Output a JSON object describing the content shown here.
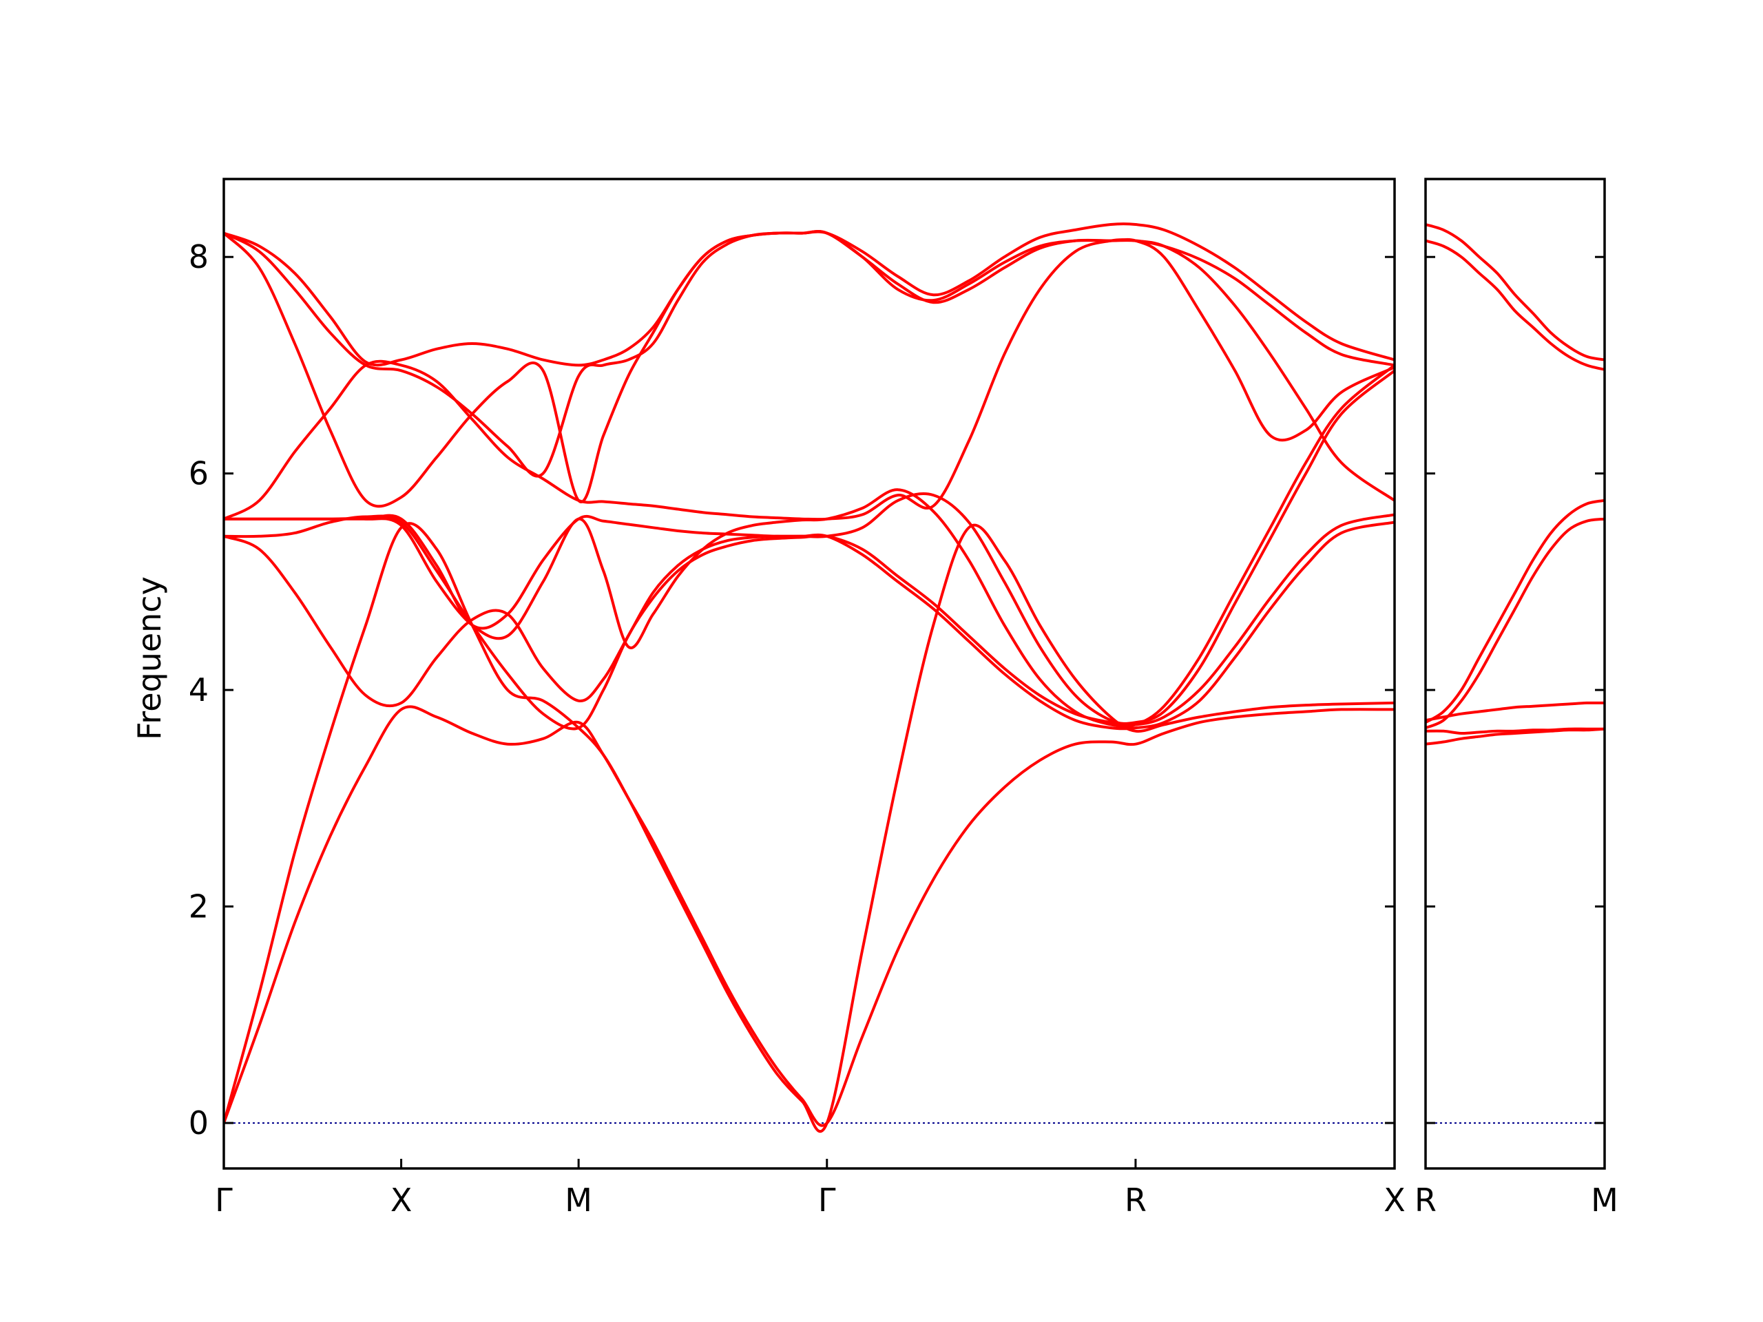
{
  "chart_data": {
    "type": "line",
    "ylabel": "Frequency",
    "xlabel": "",
    "ylim": [
      -0.42,
      8.72
    ],
    "yticks": [
      0,
      2,
      4,
      6,
      8
    ],
    "ytick_labels": [
      "0",
      "2",
      "4",
      "6",
      "8"
    ],
    "grid": false,
    "legend": "none",
    "line_color": "#ff0000",
    "zero_line_color": "#00008b",
    "panels": [
      {
        "name": "main",
        "xlim": [
          0,
          3.3
        ],
        "xticks": [
          0,
          0.5,
          1.0,
          1.7,
          2.57,
          3.3
        ],
        "xtick_labels": [
          "Γ",
          "X",
          "M",
          "Γ",
          "R",
          "X"
        ],
        "series": [
          {
            "x": [
              0,
              0.1,
              0.2,
              0.3,
              0.4,
              0.5,
              0.6,
              0.7,
              0.8,
              0.9,
              1.0,
              1.07,
              1.14,
              1.21,
              1.28,
              1.35,
              1.42,
              1.49,
              1.56,
              1.63,
              1.7,
              1.8,
              1.9,
              2.0,
              2.1,
              2.2,
              2.3,
              2.4,
              2.5,
              2.57,
              2.65,
              2.75,
              2.85,
              2.95,
              3.05,
              3.15,
              3.3
            ],
            "y": [
              0,
              0.9,
              1.85,
              2.65,
              3.3,
              3.82,
              3.75,
              3.6,
              3.5,
              3.55,
              3.7,
              3.4,
              3.0,
              2.6,
              2.15,
              1.7,
              1.25,
              0.85,
              0.5,
              0.22,
              0,
              0.8,
              1.6,
              2.25,
              2.75,
              3.1,
              3.35,
              3.5,
              3.52,
              3.5,
              3.6,
              3.7,
              3.75,
              3.78,
              3.8,
              3.82,
              3.82
            ]
          },
          {
            "x": [
              0,
              0.1,
              0.2,
              0.3,
              0.4,
              0.5,
              0.6,
              0.7,
              0.8,
              0.9,
              1.0,
              1.07,
              1.14,
              1.21,
              1.28,
              1.35,
              1.42,
              1.49,
              1.56,
              1.63,
              1.7,
              1.8,
              1.9,
              2.0,
              2.1,
              2.2,
              2.3,
              2.4,
              2.5,
              2.57,
              2.65,
              2.75,
              2.85,
              2.95,
              3.05,
              3.15,
              3.3
            ],
            "y": [
              0,
              1.2,
              2.5,
              3.6,
              4.6,
              5.5,
              5.3,
              4.6,
              4.0,
              3.9,
              3.65,
              3.4,
              3.0,
              2.55,
              2.1,
              1.65,
              1.2,
              0.8,
              0.45,
              0.2,
              0,
              1.6,
              3.2,
              4.6,
              5.5,
              5.2,
              4.6,
              4.1,
              3.75,
              3.62,
              3.68,
              3.75,
              3.8,
              3.84,
              3.86,
              3.87,
              3.88
            ]
          },
          {
            "x": [
              0,
              0.1,
              0.2,
              0.3,
              0.4,
              0.5,
              0.6,
              0.7,
              0.8,
              0.9,
              1.0,
              1.07,
              1.14,
              1.21,
              1.28,
              1.35,
              1.42,
              1.49,
              1.56,
              1.63,
              1.7,
              1.8,
              1.9,
              2.0,
              2.1,
              2.2,
              2.3,
              2.4,
              2.5,
              2.57,
              2.65,
              2.75,
              2.85,
              2.95,
              3.05,
              3.15,
              3.3
            ],
            "y": [
              5.42,
              5.3,
              4.9,
              4.4,
              3.95,
              3.88,
              4.3,
              4.65,
              4.7,
              4.2,
              3.9,
              4.1,
              4.5,
              4.9,
              5.15,
              5.3,
              5.38,
              5.41,
              5.42,
              5.42,
              5.42,
              5.25,
              5.0,
              4.75,
              4.45,
              4.15,
              3.9,
              3.72,
              3.65,
              3.65,
              3.7,
              3.9,
              4.3,
              4.75,
              5.15,
              5.45,
              5.55
            ]
          },
          {
            "x": [
              0,
              0.1,
              0.2,
              0.3,
              0.4,
              0.5,
              0.6,
              0.7,
              0.8,
              0.9,
              1.0,
              1.07,
              1.14,
              1.21,
              1.28,
              1.35,
              1.42,
              1.49,
              1.56,
              1.63,
              1.7,
              1.8,
              1.9,
              2.0,
              2.1,
              2.2,
              2.3,
              2.4,
              2.5,
              2.57,
              2.65,
              2.75,
              2.85,
              2.95,
              3.05,
              3.15,
              3.3
            ],
            "y": [
              5.42,
              5.42,
              5.45,
              5.55,
              5.6,
              5.55,
              5.1,
              4.6,
              4.15,
              3.78,
              3.65,
              4.0,
              4.5,
              4.85,
              5.1,
              5.25,
              5.33,
              5.38,
              5.4,
              5.41,
              5.42,
              5.3,
              5.05,
              4.8,
              4.5,
              4.2,
              3.95,
              3.78,
              3.7,
              3.68,
              3.75,
              4.0,
              4.4,
              4.85,
              5.25,
              5.52,
              5.62
            ]
          },
          {
            "x": [
              0,
              0.1,
              0.2,
              0.3,
              0.4,
              0.5,
              0.6,
              0.7,
              0.8,
              0.9,
              1.0,
              1.07,
              1.14,
              1.21,
              1.28,
              1.35,
              1.42,
              1.49,
              1.56,
              1.63,
              1.7,
              1.8,
              1.9,
              2.0,
              2.1,
              2.2,
              2.3,
              2.4,
              2.5,
              2.57,
              2.65,
              2.75,
              2.85,
              2.95,
              3.05,
              3.15,
              3.3
            ],
            "y": [
              5.58,
              5.58,
              5.58,
              5.58,
              5.58,
              5.58,
              5.15,
              4.6,
              4.7,
              5.2,
              5.58,
              5.56,
              5.53,
              5.5,
              5.47,
              5.45,
              5.44,
              5.43,
              5.42,
              5.42,
              5.42,
              5.5,
              5.75,
              5.8,
              5.55,
              5.0,
              4.4,
              3.95,
              3.72,
              3.7,
              3.8,
              4.2,
              4.8,
              5.4,
              6.0,
              6.55,
              6.95
            ]
          },
          {
            "x": [
              0,
              0.1,
              0.2,
              0.3,
              0.4,
              0.5,
              0.6,
              0.7,
              0.8,
              0.9,
              1.0,
              1.07,
              1.14,
              1.21,
              1.28,
              1.35,
              1.42,
              1.49,
              1.56,
              1.63,
              1.7,
              1.8,
              1.9,
              2.0,
              2.1,
              2.2,
              2.3,
              2.4,
              2.5,
              2.57,
              2.65,
              2.75,
              2.85,
              2.95,
              3.05,
              3.15,
              3.3
            ],
            "y": [
              5.58,
              5.58,
              5.58,
              5.58,
              5.58,
              5.52,
              5.0,
              4.6,
              4.5,
              5.0,
              5.58,
              5.1,
              4.4,
              4.7,
              5.05,
              5.3,
              5.45,
              5.52,
              5.55,
              5.57,
              5.58,
              5.68,
              5.85,
              5.65,
              5.2,
              4.6,
              4.1,
              3.8,
              3.68,
              3.68,
              3.85,
              4.3,
              4.9,
              5.5,
              6.1,
              6.6,
              7.0
            ]
          },
          {
            "x": [
              0,
              0.1,
              0.2,
              0.3,
              0.4,
              0.5,
              0.6,
              0.7,
              0.8,
              0.9,
              1.0,
              1.07,
              1.14,
              1.21,
              1.28,
              1.35,
              1.42,
              1.49,
              1.56,
              1.63,
              1.7,
              1.8,
              1.9,
              2.0,
              2.1,
              2.2,
              2.3,
              2.4,
              2.5,
              2.57,
              2.65,
              2.75,
              2.85,
              2.95,
              3.05,
              3.15,
              3.3
            ],
            "y": [
              5.58,
              5.75,
              6.2,
              6.6,
              7.0,
              7.0,
              6.85,
              6.5,
              6.15,
              5.95,
              5.75,
              5.74,
              5.72,
              5.7,
              5.67,
              5.64,
              5.62,
              5.6,
              5.59,
              5.58,
              5.58,
              5.62,
              5.8,
              5.7,
              6.3,
              7.1,
              7.7,
              8.05,
              8.15,
              8.15,
              8.1,
              7.9,
              7.55,
              7.1,
              6.6,
              6.1,
              5.75
            ]
          },
          {
            "x": [
              0,
              0.1,
              0.2,
              0.3,
              0.4,
              0.5,
              0.6,
              0.7,
              0.8,
              0.9,
              1.0,
              1.07,
              1.14,
              1.21,
              1.28,
              1.35,
              1.42,
              1.49,
              1.56,
              1.63,
              1.7,
              1.8,
              1.9,
              2.0,
              2.1,
              2.2,
              2.3,
              2.4,
              2.5,
              2.57,
              2.65,
              2.75,
              2.85,
              2.95,
              3.05,
              3.15,
              3.3
            ],
            "y": [
              8.22,
              7.9,
              7.2,
              6.4,
              5.75,
              5.78,
              6.15,
              6.55,
              6.85,
              6.95,
              5.75,
              6.35,
              6.9,
              7.3,
              7.7,
              8.0,
              8.15,
              8.2,
              8.22,
              8.22,
              8.22,
              8.0,
              7.7,
              7.6,
              7.75,
              7.95,
              8.1,
              8.15,
              8.15,
              8.15,
              8.0,
              7.5,
              6.95,
              6.35,
              6.4,
              6.75,
              6.98
            ]
          },
          {
            "x": [
              0,
              0.1,
              0.2,
              0.3,
              0.4,
              0.5,
              0.6,
              0.7,
              0.8,
              0.9,
              1.0,
              1.07,
              1.14,
              1.21,
              1.28,
              1.35,
              1.42,
              1.49,
              1.56,
              1.63,
              1.7,
              1.8,
              1.9,
              2.0,
              2.1,
              2.2,
              2.3,
              2.4,
              2.5,
              2.57,
              2.65,
              2.75,
              2.85,
              2.95,
              3.05,
              3.15,
              3.3
            ],
            "y": [
              8.22,
              8.05,
              7.7,
              7.3,
              7.0,
              6.95,
              6.8,
              6.55,
              6.25,
              6.0,
              6.9,
              7.0,
              7.05,
              7.2,
              7.6,
              7.95,
              8.12,
              8.2,
              8.22,
              8.22,
              8.22,
              8.0,
              7.75,
              7.58,
              7.7,
              7.9,
              8.08,
              8.15,
              8.15,
              8.15,
              8.1,
              7.98,
              7.8,
              7.55,
              7.3,
              7.1,
              7.0
            ]
          },
          {
            "x": [
              0,
              0.1,
              0.2,
              0.3,
              0.4,
              0.5,
              0.6,
              0.7,
              0.8,
              0.9,
              1.0,
              1.07,
              1.14,
              1.21,
              1.28,
              1.35,
              1.42,
              1.49,
              1.56,
              1.63,
              1.7,
              1.8,
              1.9,
              2.0,
              2.1,
              2.2,
              2.3,
              2.4,
              2.5,
              2.57,
              2.65,
              2.75,
              2.85,
              2.95,
              3.05,
              3.15,
              3.3
            ],
            "y": [
              8.22,
              8.1,
              7.85,
              7.45,
              7.03,
              7.05,
              7.15,
              7.2,
              7.15,
              7.05,
              7.0,
              7.05,
              7.15,
              7.35,
              7.7,
              8.0,
              8.15,
              8.2,
              8.22,
              8.22,
              8.22,
              8.05,
              7.82,
              7.65,
              7.78,
              8.0,
              8.18,
              8.25,
              8.3,
              8.3,
              8.25,
              8.1,
              7.9,
              7.65,
              7.4,
              7.2,
              7.05
            ]
          }
        ]
      },
      {
        "name": "right",
        "xlim": [
          0,
          0.5
        ],
        "xticks": [
          0,
          0.5
        ],
        "xtick_labels": [
          "R",
          "M"
        ],
        "series": [
          {
            "x": [
              0,
              0.05,
              0.1,
              0.15,
              0.2,
              0.25,
              0.3,
              0.35,
              0.4,
              0.45,
              0.5
            ],
            "y": [
              3.5,
              3.52,
              3.55,
              3.57,
              3.59,
              3.6,
              3.61,
              3.62,
              3.63,
              3.63,
              3.64
            ]
          },
          {
            "x": [
              0,
              0.05,
              0.1,
              0.15,
              0.2,
              0.25,
              0.3,
              0.35,
              0.4,
              0.45,
              0.5
            ],
            "y": [
              3.62,
              3.62,
              3.6,
              3.61,
              3.62,
              3.62,
              3.63,
              3.63,
              3.64,
              3.64,
              3.64
            ]
          },
          {
            "x": [
              0,
              0.05,
              0.1,
              0.15,
              0.2,
              0.25,
              0.3,
              0.35,
              0.4,
              0.45,
              0.5
            ],
            "y": [
              3.72,
              3.75,
              3.78,
              3.8,
              3.82,
              3.84,
              3.85,
              3.86,
              3.87,
              3.88,
              3.88
            ]
          },
          {
            "x": [
              0,
              0.05,
              0.1,
              0.15,
              0.2,
              0.25,
              0.3,
              0.35,
              0.4,
              0.45,
              0.5
            ],
            "y": [
              3.65,
              3.72,
              3.9,
              4.15,
              4.45,
              4.75,
              5.05,
              5.3,
              5.48,
              5.56,
              5.58
            ]
          },
          {
            "x": [
              0,
              0.05,
              0.1,
              0.15,
              0.2,
              0.25,
              0.3,
              0.35,
              0.4,
              0.45,
              0.5
            ],
            "y": [
              3.7,
              3.8,
              4.0,
              4.3,
              4.6,
              4.9,
              5.2,
              5.45,
              5.62,
              5.72,
              5.75
            ]
          },
          {
            "x": [
              0,
              0.05,
              0.1,
              0.15,
              0.2,
              0.25,
              0.3,
              0.35,
              0.4,
              0.45,
              0.5
            ],
            "y": [
              8.15,
              8.1,
              8.0,
              7.85,
              7.7,
              7.5,
              7.35,
              7.2,
              7.08,
              7.0,
              6.96
            ]
          },
          {
            "x": [
              0,
              0.05,
              0.1,
              0.15,
              0.2,
              0.25,
              0.3,
              0.35,
              0.4,
              0.45,
              0.5
            ],
            "y": [
              8.3,
              8.25,
              8.15,
              8.0,
              7.85,
              7.65,
              7.48,
              7.3,
              7.17,
              7.08,
              7.05
            ]
          }
        ]
      }
    ]
  }
}
